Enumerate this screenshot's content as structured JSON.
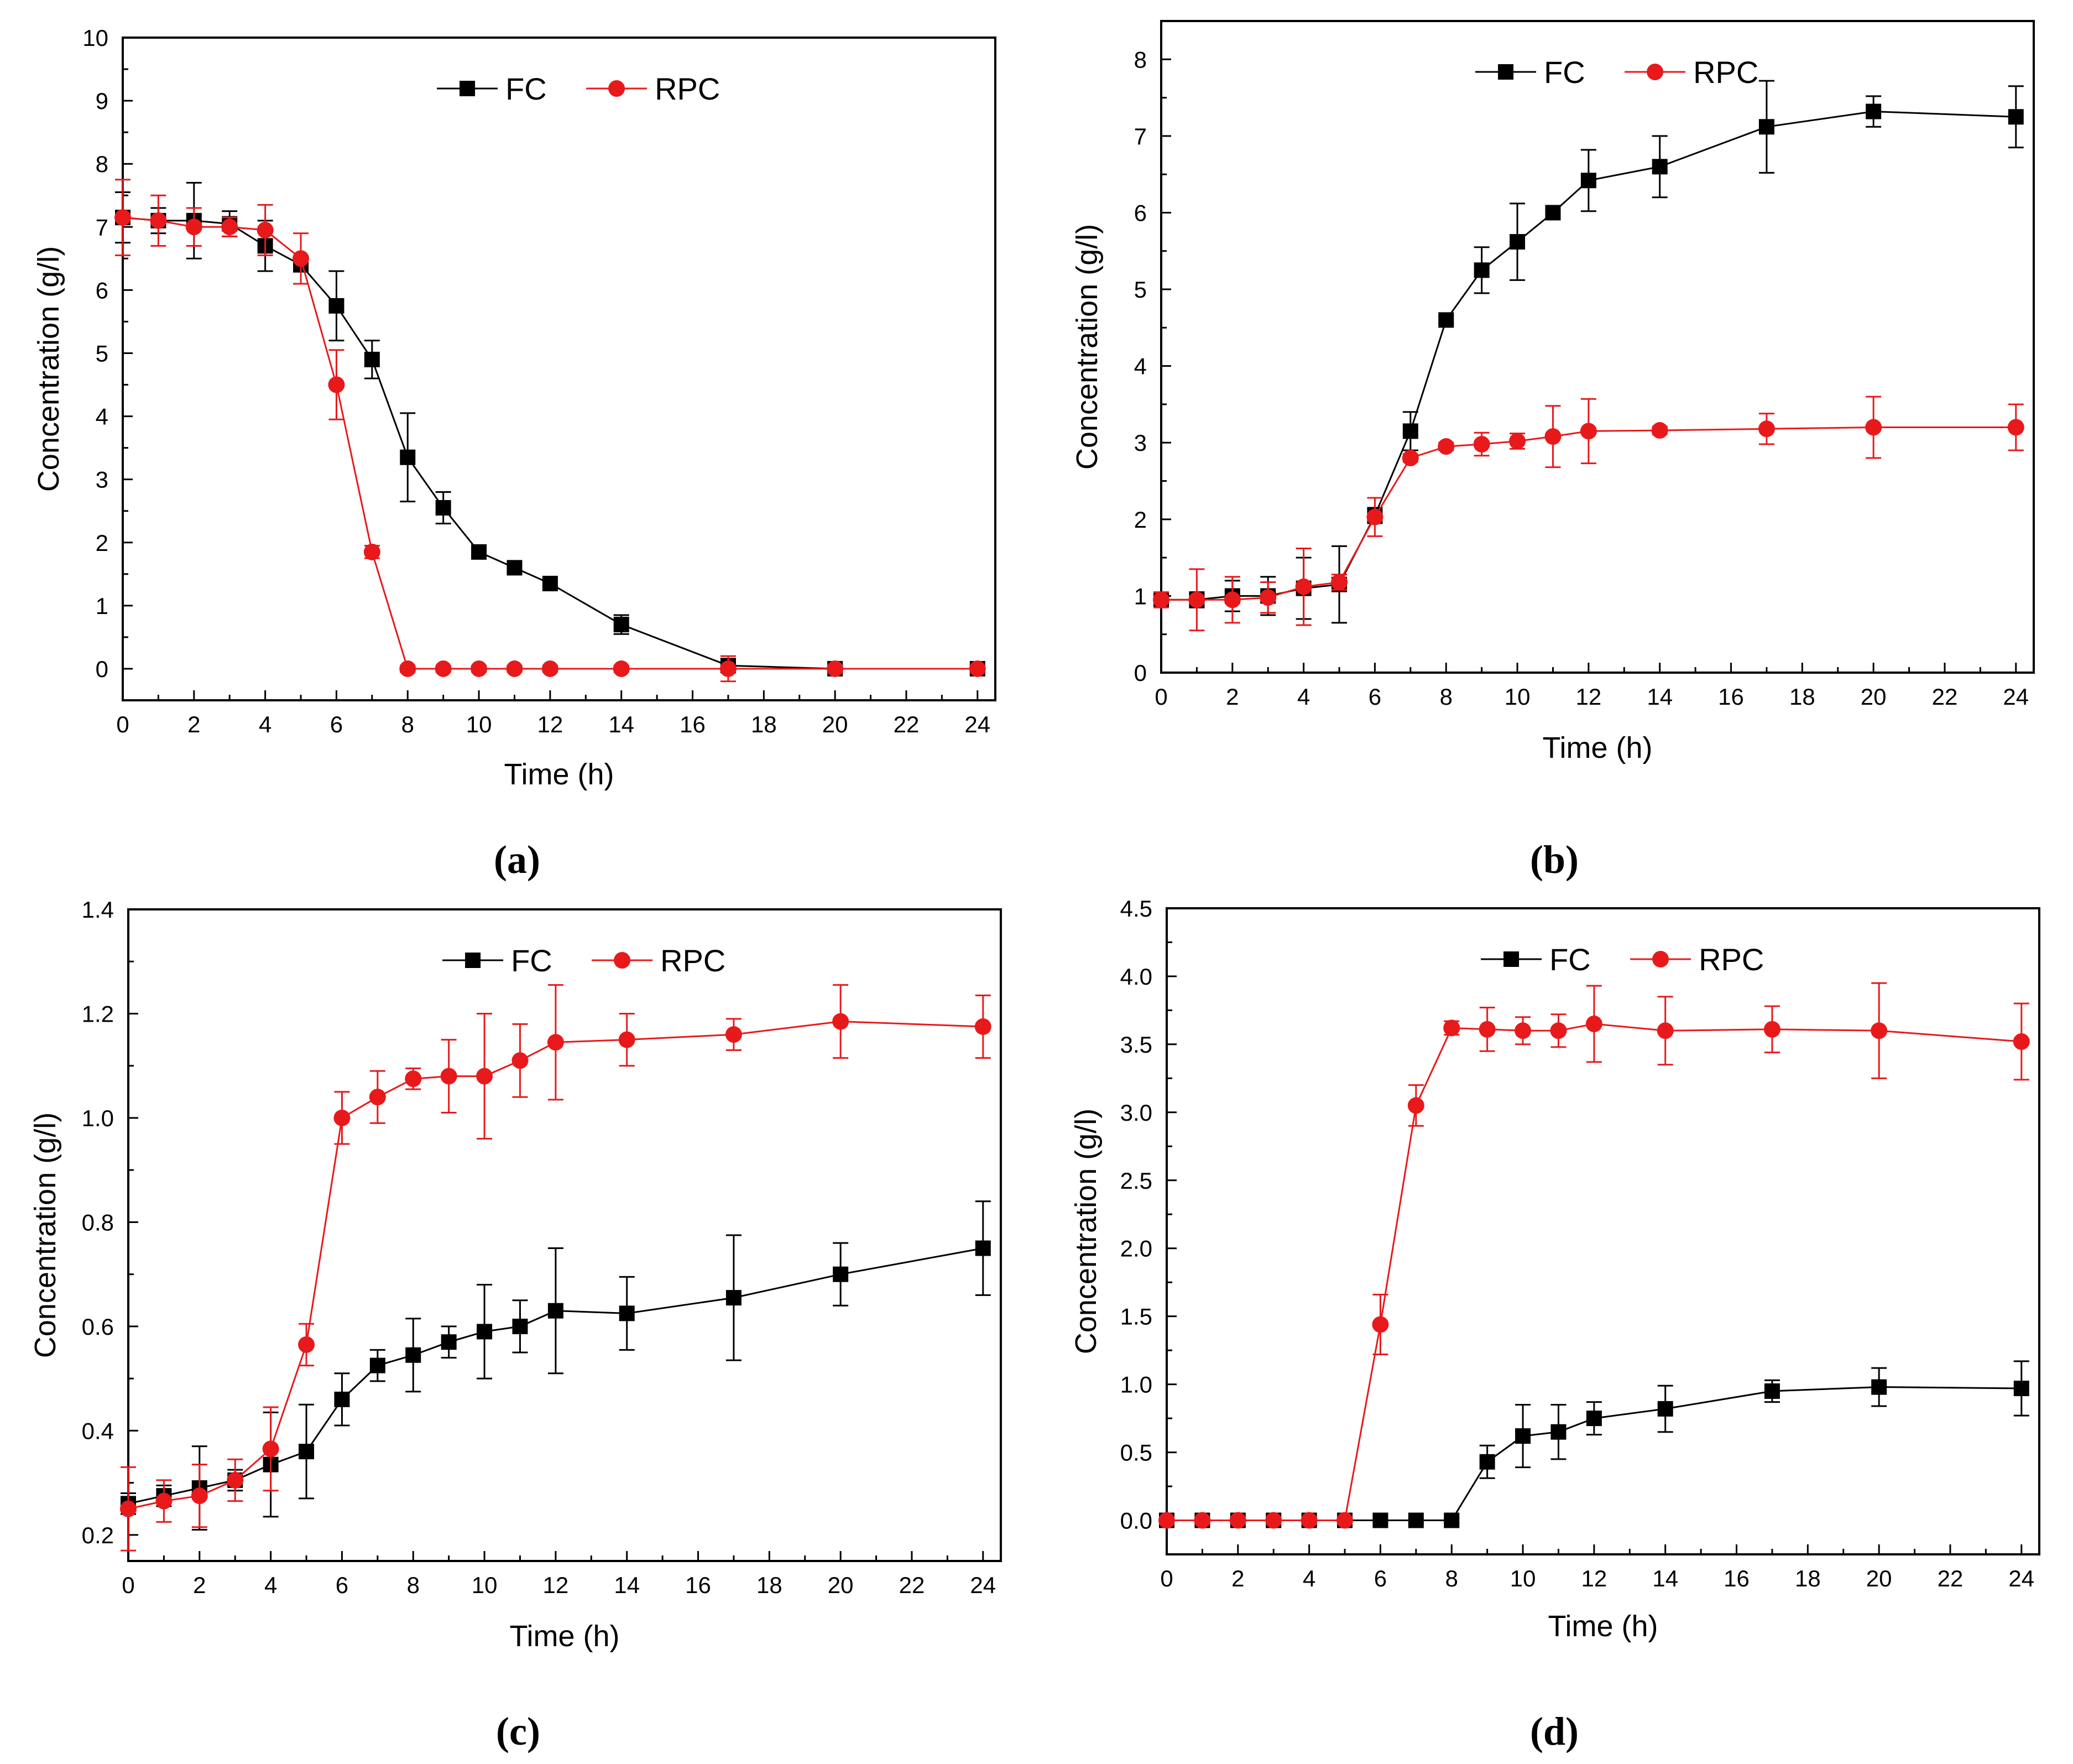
{
  "chart_data": [
    {
      "type": "line",
      "caption": "(a)",
      "xlabel": "Time (h)",
      "ylabel": "Concentration (g/l)",
      "xlim": [
        0,
        24.5
      ],
      "ylim": [
        -0.5,
        10
      ],
      "xticks": [
        "0",
        "2",
        "4",
        "6",
        "8",
        "10",
        "12",
        "14",
        "16",
        "18",
        "20",
        "22",
        "24"
      ],
      "yticks": [
        "0",
        "1",
        "2",
        "3",
        "4",
        "5",
        "6",
        "7",
        "8",
        "9",
        "10"
      ],
      "legend": [
        "FC",
        "RPC"
      ],
      "series": [
        {
          "name": "FC",
          "color": "#000000",
          "marker": "square",
          "x": [
            0,
            1,
            2,
            3,
            4,
            5,
            6,
            7,
            8,
            9,
            10,
            11,
            12,
            14,
            17,
            20,
            24
          ],
          "y": [
            7.15,
            7.1,
            7.1,
            7.05,
            6.7,
            6.4,
            5.75,
            4.9,
            3.35,
            2.55,
            1.85,
            1.6,
            1.35,
            0.7,
            0.05,
            0.0,
            0.0
          ],
          "err": [
            0.4,
            0.2,
            0.6,
            0.2,
            0.4,
            0.1,
            0.55,
            0.3,
            0.7,
            0.25,
            0.05,
            0.05,
            0.05,
            0.15,
            0.1,
            0.05,
            0.05
          ]
        },
        {
          "name": "RPC",
          "color": "#e8191b",
          "marker": "circle",
          "x": [
            0,
            1,
            2,
            3,
            4,
            5,
            6,
            7,
            8,
            9,
            10,
            11,
            12,
            14,
            17,
            20,
            24
          ],
          "y": [
            7.15,
            7.1,
            7.0,
            7.0,
            6.95,
            6.5,
            4.5,
            1.85,
            0.0,
            0.0,
            0.0,
            0.0,
            0.0,
            0.0,
            0.0,
            0.0,
            0.0
          ],
          "err": [
            0.6,
            0.4,
            0.3,
            0.15,
            0.4,
            0.4,
            0.55,
            0.1,
            0.05,
            0.05,
            0.05,
            0.05,
            0.05,
            0.05,
            0.2,
            0.05,
            0.05
          ]
        }
      ]
    },
    {
      "type": "line",
      "caption": "(b)",
      "xlabel": "Time (h)",
      "ylabel": "Concentration (g/l)",
      "xlim": [
        0,
        24.5
      ],
      "ylim": [
        0,
        8.5
      ],
      "xticks": [
        "0",
        "2",
        "4",
        "6",
        "8",
        "10",
        "12",
        "14",
        "16",
        "18",
        "20",
        "22",
        "24"
      ],
      "yticks": [
        "0",
        "1",
        "2",
        "3",
        "4",
        "5",
        "6",
        "7",
        "8"
      ],
      "legend": [
        "FC",
        "RPC"
      ],
      "series": [
        {
          "name": "FC",
          "color": "#000000",
          "marker": "square",
          "x": [
            0,
            1,
            2,
            3,
            4,
            5,
            6,
            7,
            8,
            9,
            10,
            11,
            12,
            14,
            17,
            20,
            24
          ],
          "y": [
            0.95,
            0.95,
            1.0,
            1.0,
            1.1,
            1.15,
            2.05,
            3.15,
            4.6,
            5.25,
            5.62,
            6.0,
            6.42,
            6.6,
            7.12,
            7.32,
            7.25
          ],
          "err": [
            0.05,
            0.1,
            0.2,
            0.25,
            0.4,
            0.5,
            0.1,
            0.25,
            0.05,
            0.3,
            0.5,
            0.05,
            0.4,
            0.4,
            0.6,
            0.2,
            0.4
          ]
        },
        {
          "name": "RPC",
          "color": "#e8191b",
          "marker": "circle",
          "x": [
            0,
            1,
            2,
            3,
            4,
            5,
            6,
            7,
            8,
            9,
            10,
            11,
            12,
            14,
            17,
            20,
            24
          ],
          "y": [
            0.95,
            0.95,
            0.95,
            0.98,
            1.12,
            1.18,
            2.03,
            2.8,
            2.95,
            2.98,
            3.02,
            3.08,
            3.15,
            3.16,
            3.18,
            3.2,
            3.2
          ],
          "err": [
            0.1,
            0.4,
            0.3,
            0.2,
            0.5,
            0.1,
            0.25,
            0.05,
            0.05,
            0.15,
            0.1,
            0.4,
            0.42,
            0.05,
            0.2,
            0.4,
            0.3
          ]
        }
      ]
    },
    {
      "type": "line",
      "caption": "(c)",
      "xlabel": "Time (h)",
      "ylabel": "Concentration (g/l)",
      "xlim": [
        0,
        24.5
      ],
      "ylim": [
        0.15,
        1.4
      ],
      "xticks": [
        "0",
        "2",
        "4",
        "6",
        "8",
        "10",
        "12",
        "14",
        "16",
        "18",
        "20",
        "22",
        "24"
      ],
      "yticks": [
        "0.2",
        "0.4",
        "0.6",
        "0.8",
        "1.0",
        "1.2",
        "1.4"
      ],
      "legend": [
        "FC",
        "RPC"
      ],
      "series": [
        {
          "name": "FC",
          "color": "#000000",
          "marker": "square",
          "x": [
            0,
            1,
            2,
            3,
            4,
            5,
            6,
            7,
            8,
            9,
            10,
            11,
            12,
            14,
            17,
            20,
            24
          ],
          "y": [
            0.26,
            0.275,
            0.29,
            0.305,
            0.335,
            0.36,
            0.46,
            0.525,
            0.545,
            0.57,
            0.59,
            0.6,
            0.63,
            0.625,
            0.655,
            0.7,
            0.75
          ],
          "err": [
            0.02,
            0.02,
            0.08,
            0.02,
            0.1,
            0.09,
            0.05,
            0.03,
            0.07,
            0.03,
            0.09,
            0.05,
            0.12,
            0.07,
            0.12,
            0.06,
            0.09
          ]
        },
        {
          "name": "RPC",
          "color": "#e8191b",
          "marker": "circle",
          "x": [
            0,
            1,
            2,
            3,
            4,
            5,
            6,
            7,
            8,
            9,
            10,
            11,
            12,
            14,
            17,
            20,
            24
          ],
          "y": [
            0.25,
            0.265,
            0.275,
            0.305,
            0.365,
            0.565,
            1.0,
            1.04,
            1.075,
            1.08,
            1.08,
            1.11,
            1.145,
            1.15,
            1.16,
            1.185,
            1.175
          ],
          "err": [
            0.08,
            0.04,
            0.06,
            0.04,
            0.08,
            0.04,
            0.05,
            0.05,
            0.02,
            0.07,
            0.12,
            0.07,
            0.11,
            0.05,
            0.03,
            0.07,
            0.06
          ]
        }
      ]
    },
    {
      "type": "line",
      "caption": "(d)",
      "xlabel": "Time (h)",
      "ylabel": "Concentration (g/l)",
      "xlim": [
        0,
        24.5
      ],
      "ylim": [
        -0.25,
        4.5
      ],
      "xticks": [
        "0",
        "2",
        "4",
        "6",
        "8",
        "10",
        "12",
        "14",
        "16",
        "18",
        "20",
        "22",
        "24"
      ],
      "yticks": [
        "0.0",
        "0.5",
        "1.0",
        "1.5",
        "2.0",
        "2.5",
        "3.0",
        "3.5",
        "4.0",
        "4.5"
      ],
      "legend": [
        "FC",
        "RPC"
      ],
      "series": [
        {
          "name": "FC",
          "color": "#000000",
          "marker": "square",
          "x": [
            0,
            1,
            2,
            3,
            4,
            5,
            6,
            7,
            8,
            9,
            10,
            11,
            12,
            14,
            17,
            20,
            24
          ],
          "y": [
            0,
            0,
            0,
            0,
            0,
            0,
            0,
            0,
            0,
            0.43,
            0.62,
            0.65,
            0.75,
            0.82,
            0.95,
            0.98,
            0.97
          ],
          "err": [
            0.02,
            0.02,
            0.02,
            0.02,
            0.02,
            0.02,
            0.02,
            0.02,
            0.02,
            0.12,
            0.23,
            0.2,
            0.12,
            0.17,
            0.08,
            0.14,
            0.2
          ]
        },
        {
          "name": "RPC",
          "color": "#e8191b",
          "marker": "circle",
          "x": [
            0,
            1,
            2,
            3,
            4,
            5,
            6,
            7,
            8,
            9,
            10,
            11,
            12,
            14,
            17,
            20,
            24
          ],
          "y": [
            0,
            0,
            0,
            0,
            0,
            0,
            1.44,
            3.05,
            3.62,
            3.61,
            3.6,
            3.6,
            3.65,
            3.6,
            3.61,
            3.6,
            3.52
          ],
          "err": [
            0.02,
            0.02,
            0.02,
            0.02,
            0.02,
            0.02,
            0.22,
            0.15,
            0.05,
            0.16,
            0.1,
            0.12,
            0.28,
            0.25,
            0.17,
            0.35,
            0.28
          ]
        }
      ]
    }
  ]
}
